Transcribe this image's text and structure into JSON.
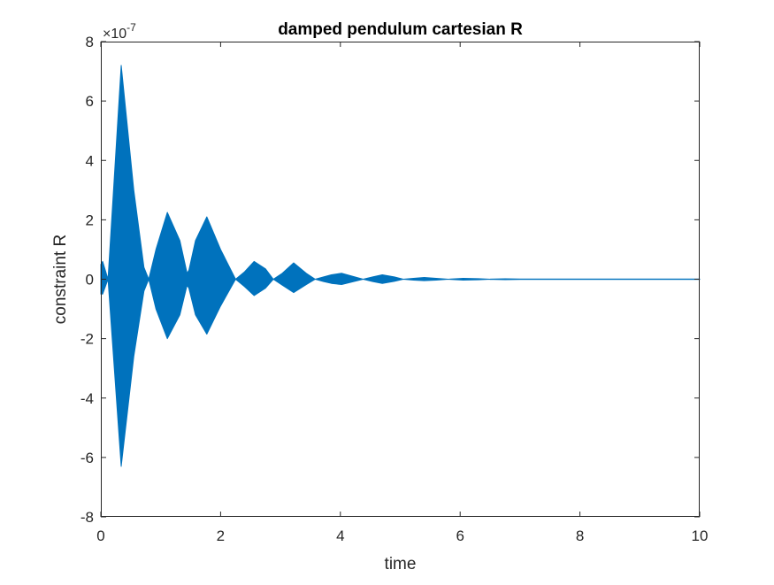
{
  "chart_data": {
    "type": "area",
    "title": "damped pendulum cartesian R",
    "xlabel": "time",
    "ylabel": "constraint R",
    "y_exponent_label": "×10",
    "y_exponent_power": "-7",
    "y_scale_factor": 1e-07,
    "xlim": [
      0,
      10
    ],
    "ylim": [
      -8,
      8
    ],
    "xticks": [
      0,
      2,
      4,
      6,
      8,
      10
    ],
    "xtick_labels": [
      "0",
      "2",
      "4",
      "6",
      "8",
      "10"
    ],
    "yticks": [
      -8,
      -6,
      -4,
      -2,
      0,
      2,
      4,
      6,
      8
    ],
    "ytick_labels": [
      "-8",
      "-6",
      "-4",
      "-2",
      "0",
      "2",
      "4",
      "6",
      "8"
    ],
    "grid": false,
    "box": true,
    "series": [
      {
        "color": "#0072BD",
        "description_envelope_units": "×1e-7",
        "upper_envelope": {
          "x": [
            0.0,
            0.03,
            0.12,
            0.34,
            0.55,
            0.72,
            0.8,
            0.92,
            1.11,
            1.32,
            1.44,
            1.47,
            1.58,
            1.77,
            2.0,
            2.25,
            2.4,
            2.56,
            2.75,
            2.88,
            3.03,
            3.22,
            3.43,
            3.58,
            3.72,
            3.85,
            4.02,
            4.2,
            4.38,
            4.54,
            4.7,
            4.9,
            5.05,
            5.22,
            5.4,
            5.6,
            5.8,
            6.05,
            6.3,
            6.5,
            6.75,
            7.0,
            7.5,
            8.0,
            9.0,
            10.0
          ],
          "y": [
            0.5,
            0.6,
            0.0,
            7.2,
            3.0,
            0.4,
            0.0,
            1.0,
            2.25,
            1.3,
            0.2,
            0.3,
            1.3,
            2.1,
            1.0,
            0.0,
            0.25,
            0.6,
            0.35,
            0.0,
            0.2,
            0.55,
            0.2,
            0.0,
            0.08,
            0.15,
            0.2,
            0.1,
            0.0,
            0.08,
            0.15,
            0.08,
            0.0,
            0.03,
            0.06,
            0.03,
            0.0,
            0.03,
            0.02,
            0.0,
            0.015,
            0.005,
            0.005,
            0.003,
            0.002,
            0.002
          ]
        },
        "lower_envelope": {
          "x": [
            0.0,
            0.03,
            0.12,
            0.34,
            0.55,
            0.72,
            0.8,
            0.92,
            1.11,
            1.32,
            1.44,
            1.47,
            1.58,
            1.77,
            2.0,
            2.25,
            2.4,
            2.56,
            2.75,
            2.88,
            3.03,
            3.22,
            3.43,
            3.58,
            3.72,
            3.85,
            4.02,
            4.2,
            4.38,
            4.54,
            4.7,
            4.9,
            5.05,
            5.22,
            5.4,
            5.6,
            5.8,
            6.05,
            6.3,
            6.5,
            6.75,
            7.0,
            7.5,
            8.0,
            9.0,
            10.0
          ],
          "y": [
            -0.5,
            -0.5,
            0.0,
            -6.3,
            -2.6,
            -0.4,
            0.0,
            -1.0,
            -2.0,
            -1.2,
            -0.2,
            -0.3,
            -1.2,
            -1.85,
            -0.9,
            0.0,
            -0.25,
            -0.55,
            -0.3,
            0.0,
            -0.2,
            -0.45,
            -0.18,
            0.0,
            -0.08,
            -0.14,
            -0.18,
            -0.09,
            0.0,
            -0.08,
            -0.14,
            -0.07,
            0.0,
            -0.03,
            -0.05,
            -0.03,
            0.0,
            -0.03,
            -0.02,
            0.0,
            -0.015,
            -0.005,
            -0.005,
            -0.003,
            -0.002,
            -0.002
          ]
        }
      }
    ]
  }
}
